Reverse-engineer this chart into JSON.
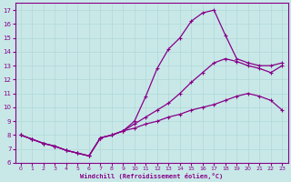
{
  "xlabel": "Windchill (Refroidissement éolien,°C)",
  "bg_color": "#c8e8e8",
  "grid_color": "#b0d8d8",
  "line_color": "#880088",
  "xlim": [
    -0.5,
    23.5
  ],
  "ylim": [
    6,
    17.5
  ],
  "xticks": [
    0,
    1,
    2,
    3,
    4,
    5,
    6,
    7,
    8,
    9,
    10,
    11,
    12,
    13,
    14,
    15,
    16,
    17,
    18,
    19,
    20,
    21,
    22,
    23
  ],
  "yticks": [
    6,
    7,
    8,
    9,
    10,
    11,
    12,
    13,
    14,
    15,
    16,
    17
  ],
  "curve_upper_x": [
    0,
    1,
    2,
    3,
    4,
    5,
    6,
    7,
    8,
    9,
    10,
    11,
    12,
    13,
    14,
    15,
    16,
    17,
    18,
    19,
    20,
    21,
    22,
    23
  ],
  "curve_upper_y": [
    8.0,
    7.7,
    7.4,
    7.2,
    6.9,
    6.7,
    6.5,
    7.8,
    8.0,
    8.3,
    9.0,
    10.8,
    12.8,
    14.2,
    15.0,
    16.2,
    16.8,
    17.0,
    15.2,
    13.5,
    13.2,
    13.0,
    13.0,
    13.2
  ],
  "curve_mid_x": [
    0,
    1,
    2,
    3,
    4,
    5,
    6,
    7,
    8,
    9,
    10,
    11,
    12,
    13,
    14,
    15,
    16,
    17,
    18,
    19,
    20,
    21,
    22,
    23
  ],
  "curve_mid_y": [
    8.0,
    7.7,
    7.4,
    7.2,
    6.9,
    6.7,
    6.5,
    7.8,
    8.0,
    8.3,
    8.8,
    9.3,
    9.8,
    10.3,
    11.0,
    11.8,
    12.5,
    13.2,
    13.5,
    13.3,
    13.0,
    12.8,
    12.5,
    13.0
  ],
  "curve_lower_x": [
    0,
    1,
    2,
    3,
    4,
    5,
    6,
    7,
    8,
    9,
    10,
    11,
    12,
    13,
    14,
    15,
    16,
    17,
    18,
    19,
    20,
    21,
    22,
    23
  ],
  "curve_lower_y": [
    8.0,
    7.7,
    7.4,
    7.2,
    6.9,
    6.7,
    6.5,
    7.8,
    8.0,
    8.3,
    8.5,
    8.8,
    9.0,
    9.3,
    9.5,
    9.8,
    10.0,
    10.2,
    10.5,
    10.8,
    11.0,
    10.8,
    10.5,
    9.8
  ]
}
